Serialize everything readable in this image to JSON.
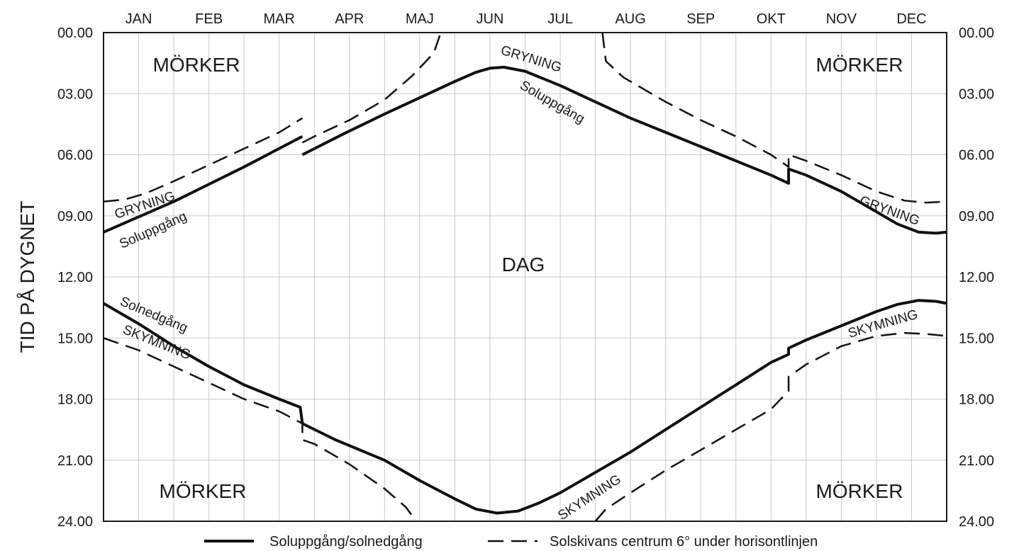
{
  "chart_data": {
    "type": "line",
    "ylabel": "TID PÅ DYGNET",
    "months": [
      "JAN",
      "FEB",
      "MAR",
      "APR",
      "MAJ",
      "JUN",
      "JUL",
      "AUG",
      "SEP",
      "OKT",
      "NOV",
      "DEC"
    ],
    "y_ticks": [
      "00.00",
      "03.00",
      "06.00",
      "09.00",
      "12.00",
      "15.00",
      "18.00",
      "21.00",
      "24.00"
    ],
    "ylim": [
      0,
      24
    ],
    "y_inverted": true,
    "x_unit": "month",
    "xlim": [
      0,
      12
    ],
    "grid": true,
    "regions": {
      "dark_top_left": "MÖRKER",
      "dark_top_right": "MÖRKER",
      "day": "DAG",
      "dark_bottom_left": "MÖRKER",
      "dark_bottom_right": "MÖRKER"
    },
    "annotations": {
      "grys_1": "GRYNING",
      "grys_2": "GRYNING",
      "grys_3": "GRYNING",
      "sunrise_1": "Soluppgång",
      "sunrise_2": "Soluppgång",
      "sunset_1": "Solnedgång",
      "dusk_1": "SKYMNING",
      "dusk_2": "SKYMNING",
      "dusk_3": "SKYMNING"
    },
    "legend": [
      {
        "label": "Soluppgång/solnedgång",
        "style": "solid"
      },
      {
        "label": "Solskivans centrum 6° under horisontlinjen",
        "style": "dashed"
      }
    ],
    "series": [
      {
        "key": "sunrise",
        "style": "solid",
        "segments": [
          [
            [
              0,
              9.8
            ],
            [
              1,
              8.3
            ],
            [
              2,
              6.6
            ],
            [
              2.83,
              5.1
            ]
          ],
          [
            [
              2.83,
              6.0
            ],
            [
              3.4,
              5.0
            ],
            [
              4,
              4.0
            ],
            [
              4.5,
              3.2
            ],
            [
              5,
              2.4
            ],
            [
              5.3,
              1.95
            ],
            [
              5.5,
              1.75
            ],
            [
              5.7,
              1.7
            ],
            [
              6,
              1.9
            ],
            [
              6.5,
              2.6
            ],
            [
              7,
              3.4
            ],
            [
              7.5,
              4.2
            ],
            [
              8,
              4.9
            ],
            [
              8.5,
              5.6
            ],
            [
              9,
              6.3
            ],
            [
              9.5,
              7.0
            ],
            [
              9.75,
              7.4
            ],
            [
              9.75,
              6.7
            ],
            [
              10,
              7.0
            ],
            [
              10.5,
              7.8
            ],
            [
              11,
              8.8
            ],
            [
              11.3,
              9.4
            ],
            [
              11.6,
              9.8
            ],
            [
              11.85,
              9.85
            ],
            [
              12,
              9.8
            ]
          ]
        ]
      },
      {
        "key": "dawn",
        "style": "dashed",
        "segments": [
          [
            [
              0,
              8.3
            ],
            [
              0.3,
              8.2
            ],
            [
              0.6,
              7.9
            ],
            [
              1,
              7.3
            ],
            [
              1.5,
              6.5
            ],
            [
              2,
              5.7
            ],
            [
              2.5,
              4.9
            ],
            [
              2.83,
              4.2
            ]
          ],
          [
            [
              2.83,
              5.4
            ],
            [
              3,
              5.1
            ],
            [
              3.5,
              4.3
            ],
            [
              4,
              3.3
            ],
            [
              4.4,
              2.1
            ],
            [
              4.7,
              1.0
            ],
            [
              4.8,
              0
            ]
          ],
          [
            [
              7.1,
              0
            ],
            [
              7.15,
              1.4
            ],
            [
              7.4,
              2.2
            ],
            [
              7.7,
              2.8
            ],
            [
              8,
              3.4
            ],
            [
              8.5,
              4.3
            ],
            [
              9,
              5.1
            ],
            [
              9.5,
              6.0
            ],
            [
              9.75,
              6.6
            ],
            [
              9.75,
              6.0
            ],
            [
              10,
              6.3
            ],
            [
              10.5,
              7.0
            ],
            [
              11,
              7.8
            ],
            [
              11.4,
              8.25
            ],
            [
              11.7,
              8.35
            ],
            [
              12,
              8.3
            ]
          ]
        ]
      },
      {
        "key": "sunset",
        "style": "solid",
        "segments": [
          [
            [
              0,
              13.3
            ],
            [
              0.5,
              14.3
            ],
            [
              1,
              15.4
            ],
            [
              1.5,
              16.4
            ],
            [
              2,
              17.3
            ],
            [
              2.5,
              18.0
            ],
            [
              2.8,
              18.4
            ],
            [
              2.83,
              19.2
            ]
          ],
          [
            [
              2.83,
              19.2
            ],
            [
              3.3,
              20.0
            ],
            [
              4,
              21.0
            ],
            [
              4.5,
              22.0
            ],
            [
              5,
              22.9
            ],
            [
              5.3,
              23.4
            ],
            [
              5.6,
              23.6
            ],
            [
              5.9,
              23.5
            ],
            [
              6.2,
              23.1
            ],
            [
              6.5,
              22.6
            ],
            [
              7,
              21.6
            ],
            [
              7.5,
              20.6
            ],
            [
              8,
              19.5
            ],
            [
              8.5,
              18.4
            ],
            [
              9,
              17.3
            ],
            [
              9.5,
              16.2
            ],
            [
              9.75,
              15.8
            ],
            [
              9.75,
              15.5
            ],
            [
              10,
              15.1
            ],
            [
              10.5,
              14.4
            ],
            [
              11,
              13.7
            ],
            [
              11.3,
              13.35
            ],
            [
              11.6,
              13.15
            ],
            [
              11.85,
              13.2
            ],
            [
              12,
              13.3
            ]
          ]
        ]
      },
      {
        "key": "dusk",
        "style": "dashed",
        "segments": [
          [
            [
              0,
              15.0
            ],
            [
              0.5,
              15.6
            ],
            [
              1,
              16.4
            ],
            [
              1.5,
              17.2
            ],
            [
              2,
              18.0
            ],
            [
              2.5,
              18.6
            ],
            [
              2.83,
              19.2
            ],
            [
              2.83,
              20.0
            ],
            [
              3,
              20.2
            ],
            [
              3.5,
              21.2
            ],
            [
              4,
              22.4
            ],
            [
              4.3,
              23.3
            ],
            [
              4.45,
              24
            ]
          ],
          [
            [
              7.0,
              24
            ],
            [
              7.15,
              23.4
            ],
            [
              7.5,
              22.6
            ],
            [
              8,
              21.5
            ],
            [
              8.5,
              20.5
            ],
            [
              9,
              19.5
            ],
            [
              9.5,
              18.5
            ],
            [
              9.75,
              17.6
            ],
            [
              9.75,
              16.9
            ],
            [
              10,
              16.3
            ],
            [
              10.5,
              15.4
            ],
            [
              11,
              14.9
            ],
            [
              11.4,
              14.75
            ],
            [
              11.7,
              14.8
            ],
            [
              12,
              14.9
            ]
          ]
        ]
      }
    ]
  }
}
